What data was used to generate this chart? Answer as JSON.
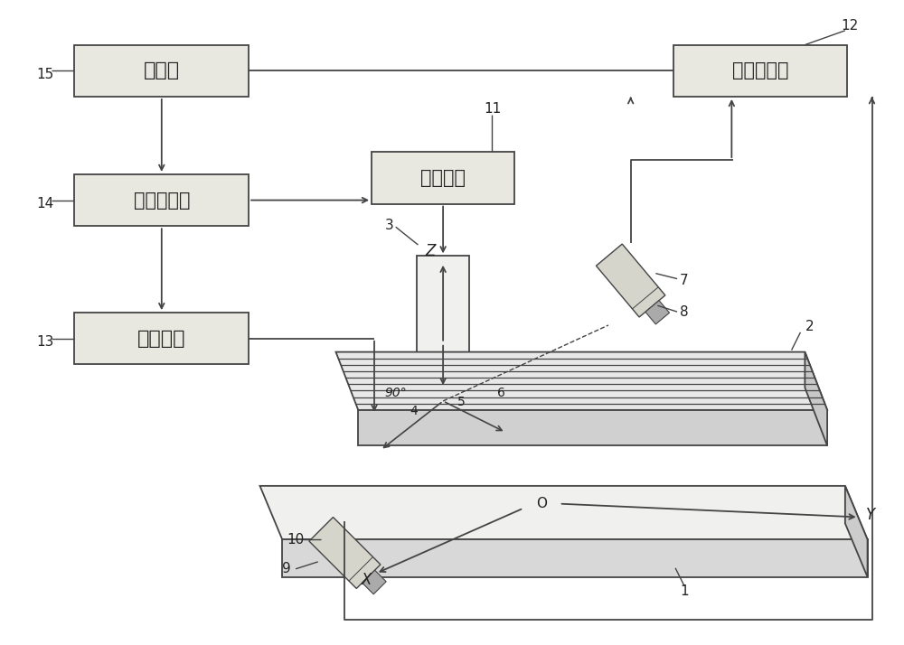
{
  "bg": "#ffffff",
  "lc": "#444444",
  "bc": "#e8e8e0",
  "tc": "#222222",
  "computer_label": "计算机",
  "data_card_label": "数据采集卡",
  "motor_label": "步进电机",
  "welder_label": "气保焊机",
  "img_card_label": "图像采集卡",
  "num15": "15",
  "num14": "14",
  "num13": "13",
  "num11": "11",
  "num12": "12",
  "num1": "1",
  "num2": "2",
  "num3": "3",
  "num4": "4",
  "num5": "5",
  "num6": "6",
  "num7": "7",
  "num8": "8",
  "num9": "9",
  "num10": "10",
  "label_Z": "Z",
  "label_O": "O",
  "label_X": "X",
  "label_Y": "Y",
  "label_90": "90°"
}
